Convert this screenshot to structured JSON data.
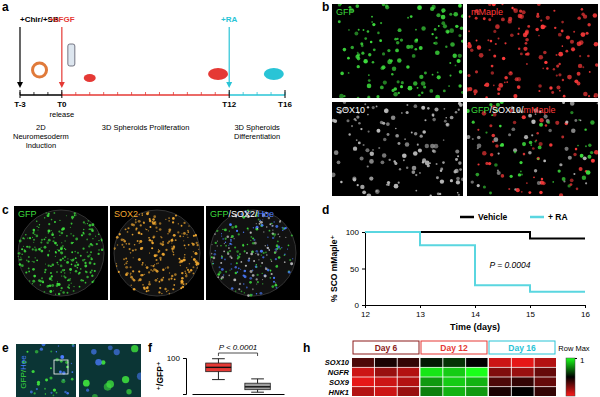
{
  "figure": {
    "panel_labels": [
      "a",
      "b",
      "c",
      "d",
      "e",
      "f",
      "h"
    ],
    "timeline": {
      "days": [
        -3,
        0,
        12,
        16
      ],
      "day_labels": [
        "T-3",
        "T0",
        "T12",
        "T16"
      ],
      "treatments": [
        {
          "text": "+Chir/+SB",
          "color": "#000000"
        },
        {
          "text": "+bFGF",
          "color": "#e53935"
        },
        {
          "text": "+RA",
          "color": "#29c4d6"
        }
      ],
      "release": "release",
      "phases": [
        {
          "lines": [
            "2D",
            "Neuromesoderm",
            "Induction"
          ],
          "color": "#000000"
        },
        {
          "lines": [
            "3D Spheroids Proliferation"
          ],
          "color": "#e53935"
        },
        {
          "lines": [
            "3D Spheroids",
            "Differentiation"
          ],
          "color": "#29c4d6"
        }
      ]
    },
    "micrographs": {
      "b": [
        [
          {
            "text": "GFP",
            "color": "#3ddc3d"
          }
        ],
        [
          {
            "text": "mMaple",
            "color": "#ff3b3b"
          }
        ],
        [
          {
            "text": "SOX10",
            "color": "#ffffff"
          }
        ],
        [
          {
            "text": "GFP",
            "color": "#3ddc3d"
          },
          {
            "text": "/SOX10/",
            "color": "#ffffff"
          },
          {
            "text": "mMaple",
            "color": "#ff3b3b"
          }
        ]
      ],
      "c": [
        [
          {
            "text": "GFP",
            "color": "#3ddc3d"
          }
        ],
        [
          {
            "text": "SOX2",
            "color": "#f0a830"
          }
        ],
        [
          {
            "text": "GFP",
            "color": "#3ddc3d"
          },
          {
            "text": "/SOX2/",
            "color": "#ffffff"
          },
          {
            "text": "Hoe",
            "color": "#4a7cff"
          }
        ]
      ],
      "e": [
        [
          {
            "text": "GFP/",
            "color": "#3ddc3d"
          },
          {
            "text": "Hoe",
            "color": "#4a7cff"
          }
        ]
      ]
    }
  },
  "chart_data": [
    {
      "type": "line",
      "x_label": "Time (days)",
      "y_label": "% SCO mMaple⁺",
      "x": [
        12,
        13,
        14,
        15,
        16
      ],
      "series": [
        {
          "name": "Vehicle",
          "color": "#000000",
          "values": [
            100,
            100,
            100,
            91,
            91
          ],
          "line_style": "step"
        },
        {
          "name": "+ RA",
          "color": "#5ad6e0",
          "values": [
            100,
            82,
            27,
            18,
            18
          ],
          "line_style": "step"
        }
      ],
      "xlim": [
        12,
        16
      ],
      "xticks": [
        12,
        13,
        14,
        15,
        16
      ],
      "ylim": [
        0,
        100
      ],
      "yticks": [
        0,
        50,
        100
      ],
      "grid": false,
      "legend": "top-right",
      "annotation": "P = 0.0004"
    },
    {
      "type": "box",
      "y_label": "⁺/GFP⁺",
      "categories": [
        null,
        null
      ],
      "boxes": [
        {
          "min": 40,
          "q1": 62,
          "median": 74,
          "q3": 86,
          "max": 98
        },
        {
          "min": 5,
          "q1": 12,
          "median": 20,
          "q3": 30,
          "max": 42
        }
      ],
      "colors": [
        "#e53935",
        "#9e9e9e"
      ],
      "ylim": [
        0,
        100
      ],
      "yticks": [
        100
      ],
      "annotation": "P < 0.0001"
    },
    {
      "type": "heatmap",
      "groups": [
        "Day 6",
        "Day 12",
        "Day 16"
      ],
      "colors": [
        "#8b1a1a",
        "#e53935",
        "#29c4d6"
      ],
      "rows": [
        "SOX10",
        "NGFR",
        "SOX9",
        "HNK1"
      ],
      "cells": [
        [
          -0.3,
          -0.1,
          -0.2,
          0.1,
          0.2,
          0.0,
          -0.8,
          -0.9,
          -0.7
        ],
        [
          -0.8,
          -0.6,
          -0.7,
          0.9,
          0.8,
          1.0,
          -0.5,
          -0.6,
          -0.4
        ],
        [
          -0.9,
          -0.8,
          -0.7,
          0.6,
          0.8,
          0.7,
          -0.3,
          -0.2,
          -0.4
        ],
        [
          -0.7,
          -0.8,
          -0.6,
          0.5,
          0.7,
          0.6,
          -0.1,
          0.0,
          -0.2
        ]
      ],
      "colorbar": {
        "range": [
          -1,
          1
        ],
        "ticks": [
          1
        ],
        "label": "Row Max"
      }
    }
  ]
}
